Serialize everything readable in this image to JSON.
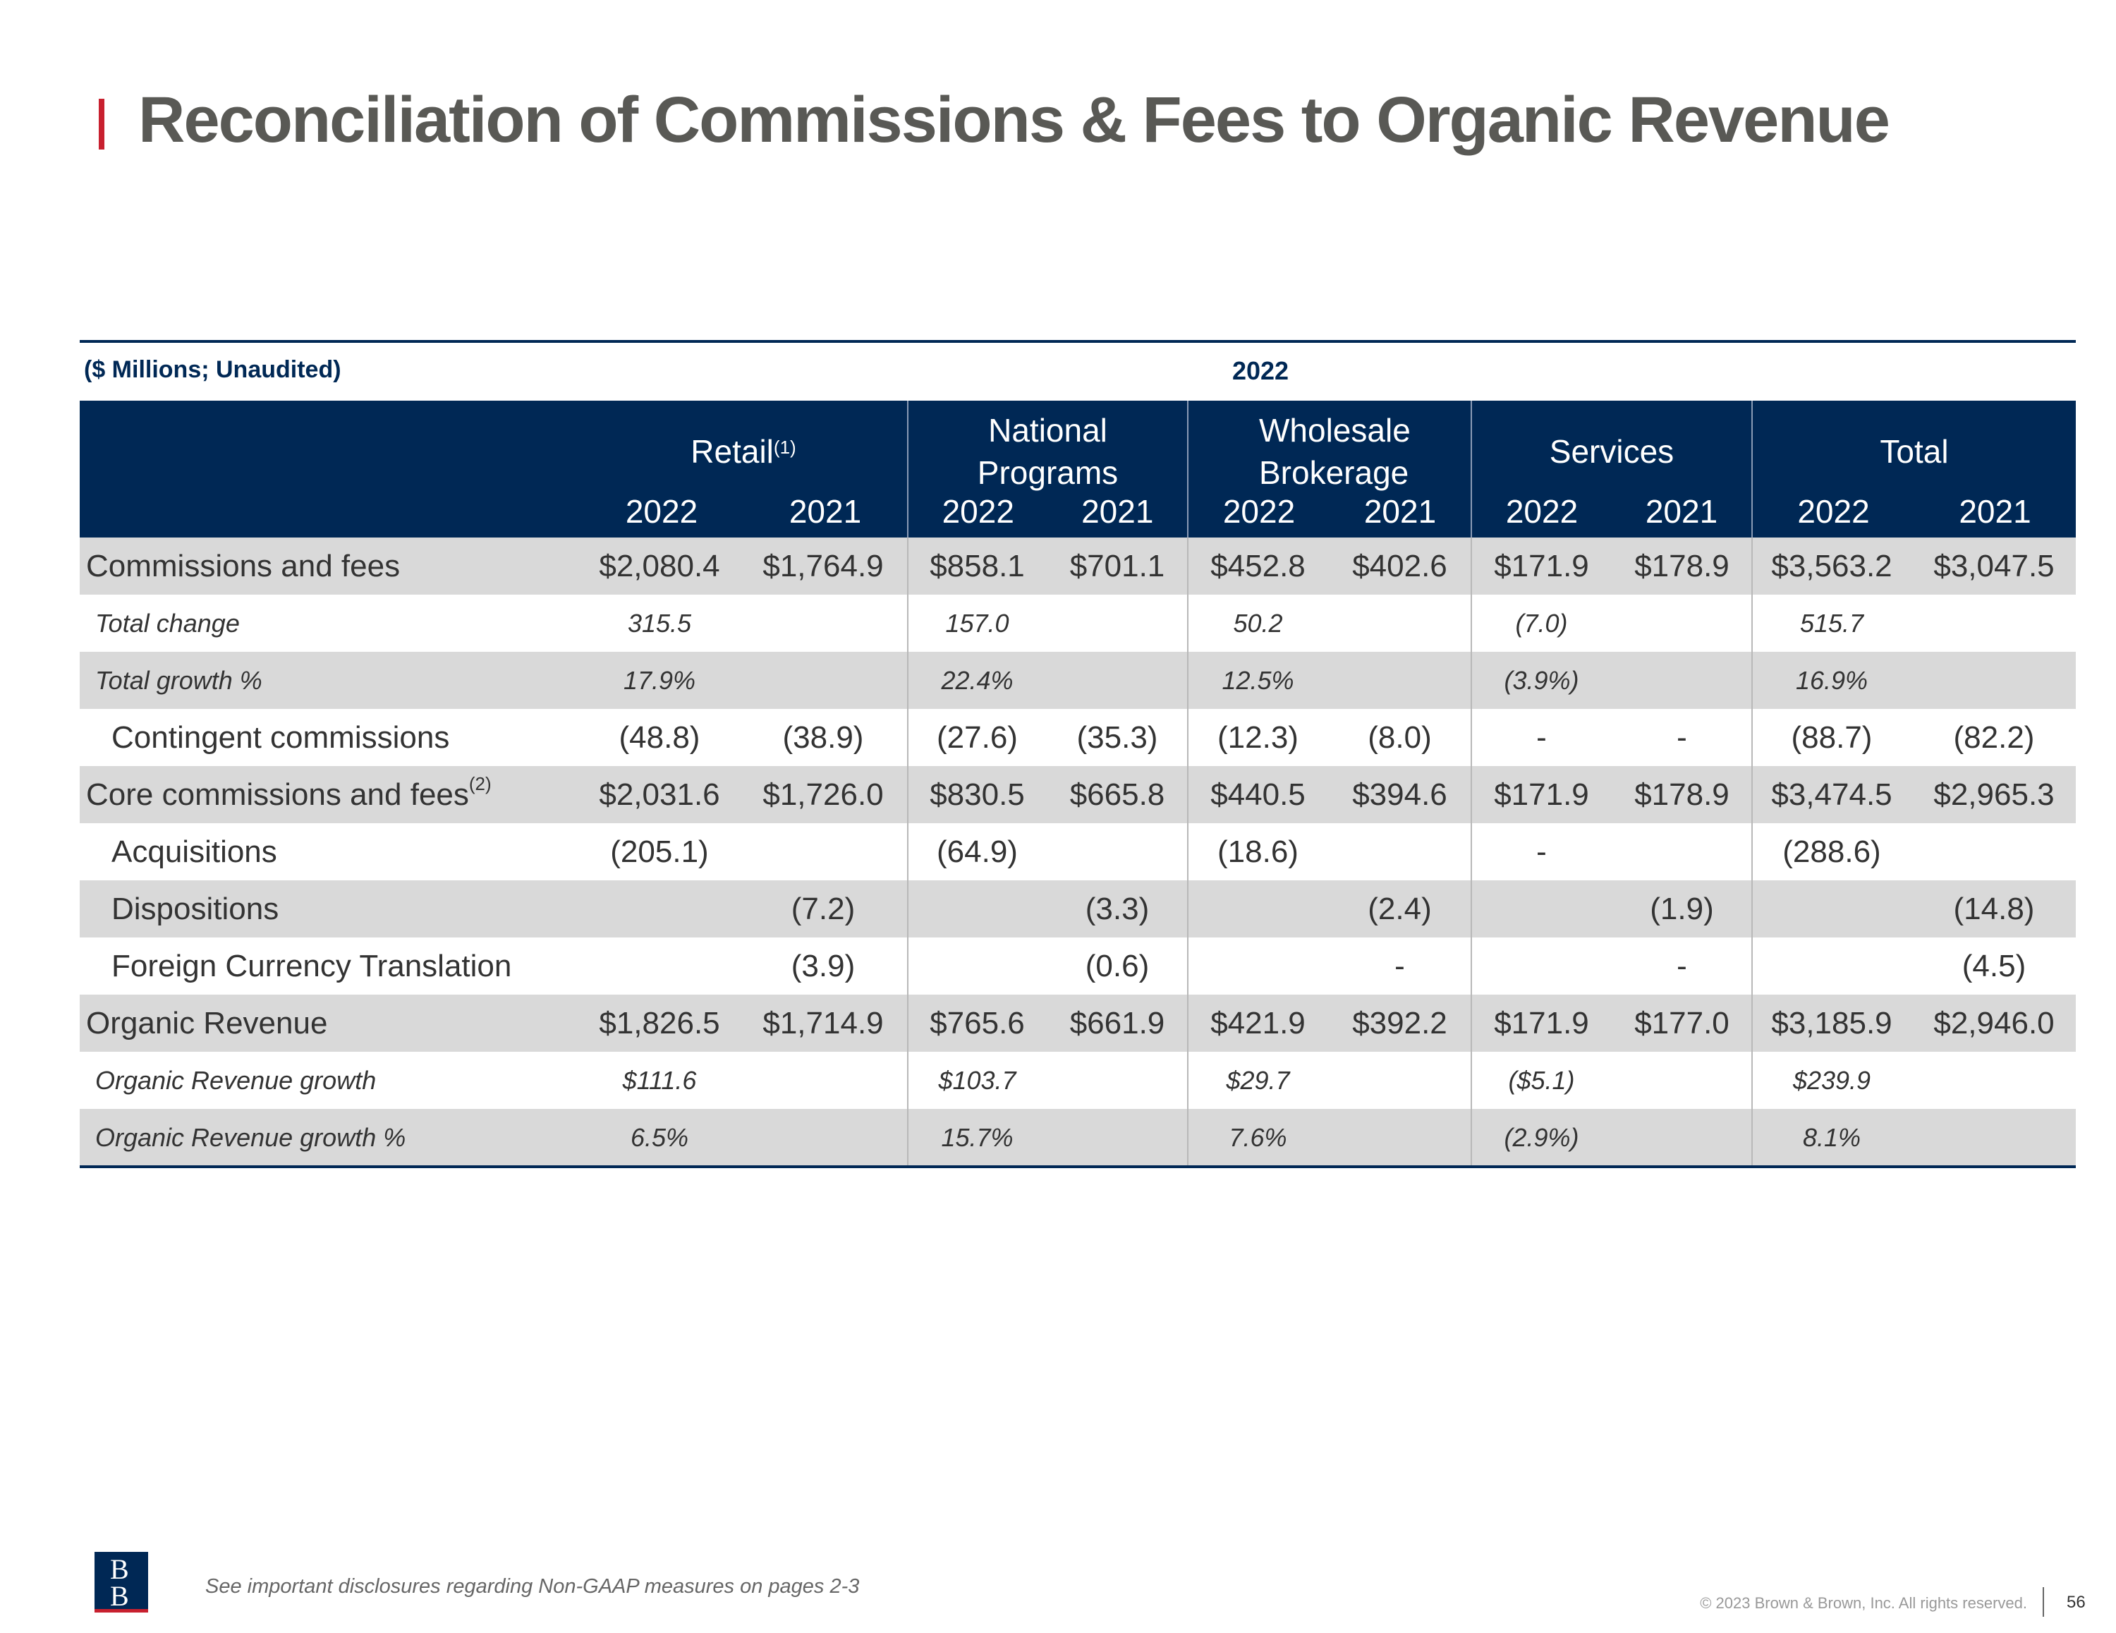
{
  "title": "Reconciliation of Commissions & Fees to Organic Revenue",
  "units": "($ Millions; Unaudited)",
  "year_heading": "2022",
  "segments": [
    {
      "name": "Retail",
      "sup": "(1)",
      "years": [
        "2022",
        "2021"
      ]
    },
    {
      "name": "National Programs",
      "sup": "",
      "years": [
        "2022",
        "2021"
      ]
    },
    {
      "name": "Wholesale Brokerage",
      "sup": "",
      "years": [
        "2022",
        "2021"
      ]
    },
    {
      "name": "Services",
      "sup": "",
      "years": [
        "2022",
        "2021"
      ]
    },
    {
      "name": "Total",
      "sup": "",
      "years": [
        "2022",
        "2021"
      ]
    }
  ],
  "rows": [
    {
      "label": "Commissions and fees",
      "sup": "",
      "style": "g",
      "values": [
        "$2,080.4",
        "$1,764.9",
        "$858.1",
        "$701.1",
        "$452.8",
        "$402.6",
        "$171.9",
        "$178.9",
        "$3,563.2",
        "$3,047.5"
      ]
    },
    {
      "label": "Total change",
      "sup": "",
      "style": "it",
      "values": [
        "315.5",
        "",
        "157.0",
        "",
        "50.2",
        "",
        "(7.0)",
        "",
        "515.7",
        ""
      ]
    },
    {
      "label": "Total growth %",
      "sup": "",
      "style": "it g",
      "values": [
        "17.9%",
        "",
        "22.4%",
        "",
        "12.5%",
        "",
        "(3.9%)",
        "",
        "16.9%",
        ""
      ]
    },
    {
      "label": "Contingent commissions",
      "sup": "",
      "style": "ind",
      "values": [
        "(48.8)",
        "(38.9)",
        "(27.6)",
        "(35.3)",
        "(12.3)",
        "(8.0)",
        "-",
        "-",
        "(88.7)",
        "(82.2)"
      ]
    },
    {
      "label": "Core commissions and fees",
      "sup": "(2)",
      "style": "g",
      "values": [
        "$2,031.6",
        "$1,726.0",
        "$830.5",
        "$665.8",
        "$440.5",
        "$394.6",
        "$171.9",
        "$178.9",
        "$3,474.5",
        "$2,965.3"
      ]
    },
    {
      "label": "Acquisitions",
      "sup": "",
      "style": "ind2",
      "values": [
        "(205.1)",
        "",
        "(64.9)",
        "",
        "(18.6)",
        "",
        "-",
        "",
        "(288.6)",
        ""
      ]
    },
    {
      "label": "Dispositions",
      "sup": "",
      "style": "ind2 g",
      "values": [
        "",
        "(7.2)",
        "",
        "(3.3)",
        "",
        "(2.4)",
        "",
        "(1.9)",
        "",
        "(14.8)"
      ]
    },
    {
      "label": "Foreign Currency Translation",
      "sup": "",
      "style": "ind2",
      "values": [
        "",
        "(3.9)",
        "",
        "(0.6)",
        "",
        "-",
        "",
        "-",
        "",
        "(4.5)"
      ]
    },
    {
      "label": "Organic Revenue",
      "sup": "",
      "style": "g",
      "values": [
        "$1,826.5",
        "$1,714.9",
        "$765.6",
        "$661.9",
        "$421.9",
        "$392.2",
        "$171.9",
        "$177.0",
        "$3,185.9",
        "$2,946.0"
      ]
    },
    {
      "label": "Organic Revenue growth",
      "sup": "",
      "style": "it",
      "values": [
        "$111.6",
        "",
        "$103.7",
        "",
        "$29.7",
        "",
        "($5.1)",
        "",
        "$239.9",
        ""
      ]
    },
    {
      "label": "Organic Revenue growth %",
      "sup": "",
      "style": "it g",
      "values": [
        "6.5%",
        "",
        "15.7%",
        "",
        "7.6%",
        "",
        "(2.9%)",
        "",
        "8.1%",
        ""
      ]
    }
  ],
  "footer": {
    "logo_text": "BB",
    "disclosure": "See important disclosures regarding Non-GAAP measures on pages 2-3",
    "copyright": "© 2023 Brown & Brown, Inc. All rights reserved.",
    "page": "56"
  }
}
